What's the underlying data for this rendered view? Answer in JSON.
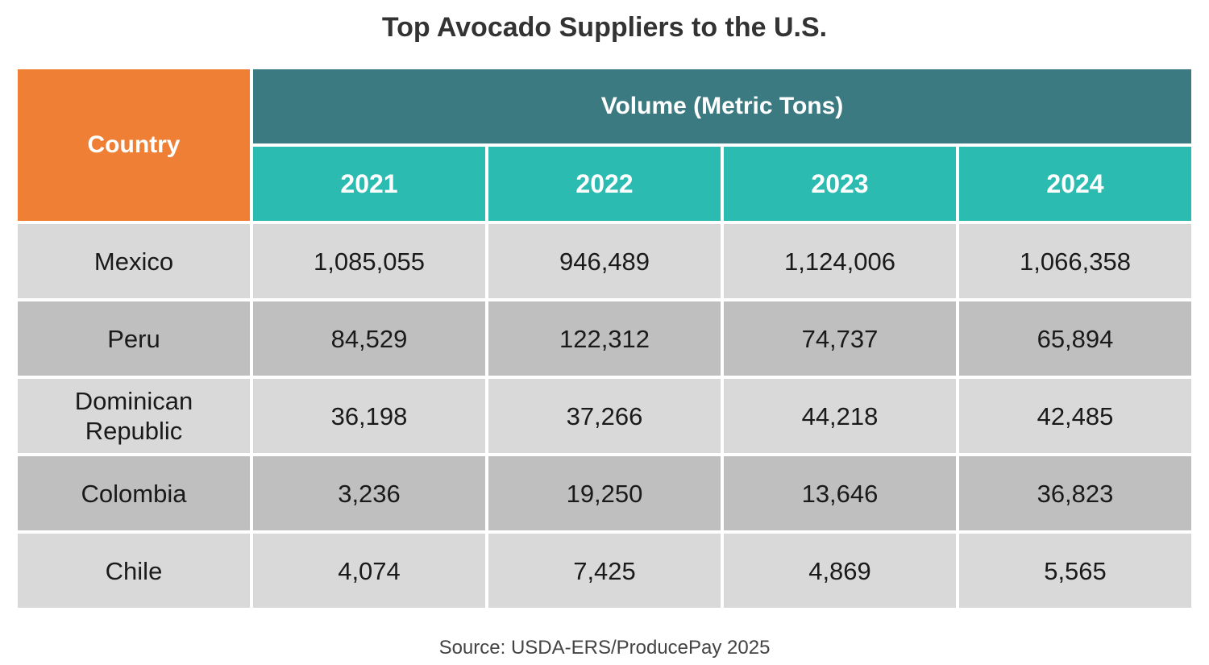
{
  "title": "Top Avocado Suppliers to the U.S.",
  "source": "Source: USDA-ERS/ProducePay 2025",
  "colors": {
    "country_header": "#ee7f35",
    "volume_header": "#3a7a80",
    "year_header": "#2bbbb1",
    "row_light": "#d9d9d9",
    "row_dark": "#bfbfbf"
  },
  "chart_data": {
    "type": "table",
    "title": "Top Avocado Suppliers to the U.S.",
    "row_header_label": "Country",
    "group_header_label": "Volume (Metric Tons)",
    "columns": [
      "2021",
      "2022",
      "2023",
      "2024"
    ],
    "rows": [
      {
        "country": "Mexico",
        "values": [
          "1,085,055",
          "946,489",
          "1,124,006",
          "1,066,358"
        ]
      },
      {
        "country": "Peru",
        "values": [
          "84,529",
          "122,312",
          "74,737",
          "65,894"
        ]
      },
      {
        "country": "Dominican Republic",
        "values": [
          "36,198",
          "37,266",
          "44,218",
          "42,485"
        ]
      },
      {
        "country": "Colombia",
        "values": [
          "3,236",
          "19,250",
          "13,646",
          "36,823"
        ]
      },
      {
        "country": "Chile",
        "values": [
          "4,074",
          "7,425",
          "4,869",
          "5,565"
        ]
      }
    ]
  }
}
